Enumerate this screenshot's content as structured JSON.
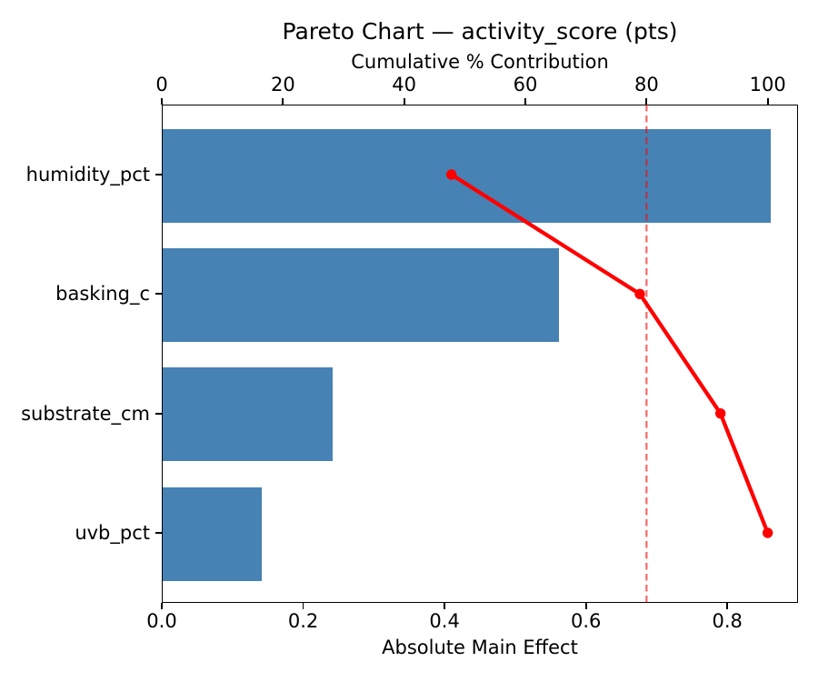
{
  "chart_data": {
    "type": "bar",
    "subtype": "pareto",
    "orientation": "horizontal",
    "title": "Pareto Chart — activity_score (pts)",
    "top_axis_label": "Cumulative % Contribution",
    "bottom_axis_label": "Absolute Main Effect",
    "categories": [
      "humidity_pct",
      "basking_c",
      "substrate_cm",
      "uvb_pct"
    ],
    "values": [
      0.86,
      0.56,
      0.24,
      0.14
    ],
    "cumulative_pct": [
      47.8,
      78.9,
      92.2,
      100.0
    ],
    "bottom_ticks": [
      "0.0",
      "0.2",
      "0.4",
      "0.6",
      "0.8"
    ],
    "bottom_tick_values": [
      0.0,
      0.2,
      0.4,
      0.6,
      0.8
    ],
    "top_ticks": [
      "0",
      "20",
      "40",
      "60",
      "80",
      "100"
    ],
    "top_tick_values": [
      0,
      20,
      40,
      60,
      80,
      100
    ],
    "xlim_bottom": [
      0,
      0.9
    ],
    "xlim_top": [
      0,
      105
    ],
    "threshold_pct": 80,
    "grid": false,
    "legend": "none",
    "colors": {
      "bar": "#4682B4",
      "cumulative_line": "#FF0000",
      "threshold_line": "rgba(255,0,0,0.6)",
      "text": "#000000",
      "spine": "#000000",
      "background": "#FFFFFF"
    }
  }
}
